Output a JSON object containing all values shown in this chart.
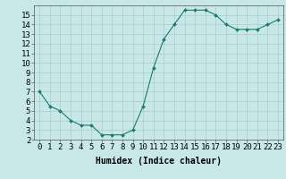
{
  "x": [
    0,
    1,
    2,
    3,
    4,
    5,
    6,
    7,
    8,
    9,
    10,
    11,
    12,
    13,
    14,
    15,
    16,
    17,
    18,
    19,
    20,
    21,
    22,
    23
  ],
  "y": [
    7.0,
    5.5,
    5.0,
    4.0,
    3.5,
    3.5,
    2.5,
    2.5,
    2.5,
    3.0,
    5.5,
    9.5,
    12.5,
    14.0,
    15.5,
    15.5,
    15.5,
    15.0,
    14.0,
    13.5,
    13.5,
    13.5,
    14.0,
    14.5
  ],
  "xlabel": "Humidex (Indice chaleur)",
  "line_color": "#1a7a6e",
  "marker_color": "#1a7a6e",
  "bg_color": "#c8e8e8",
  "grid_color": "#a8cccc",
  "axis_bg": "#c8e8e8",
  "xlim": [
    -0.5,
    23.5
  ],
  "ylim": [
    2,
    16
  ],
  "yticks": [
    2,
    3,
    4,
    5,
    6,
    7,
    8,
    9,
    10,
    11,
    12,
    13,
    14,
    15
  ],
  "xtick_labels": [
    "0",
    "1",
    "2",
    "3",
    "4",
    "5",
    "6",
    "7",
    "8",
    "9",
    "10",
    "11",
    "12",
    "13",
    "14",
    "15",
    "16",
    "17",
    "18",
    "19",
    "20",
    "21",
    "22",
    "23"
  ],
  "xlabel_fontsize": 7,
  "tick_fontsize": 6.5
}
